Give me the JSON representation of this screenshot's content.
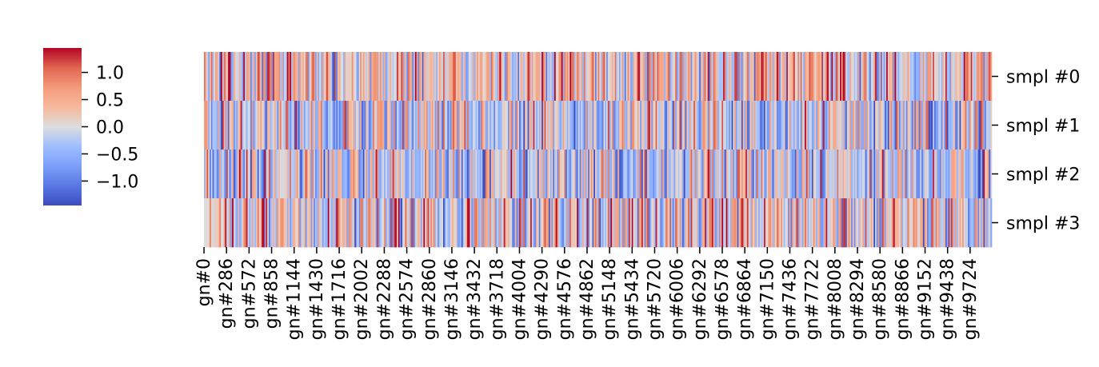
{
  "chart_data": {
    "type": "heatmap",
    "title": "",
    "xlabel": "",
    "ylabel": "",
    "rows": [
      "smpl #0",
      "smpl #1",
      "smpl #2",
      "smpl #3"
    ],
    "x_tick_labels": [
      "gn#0",
      "gn#286",
      "gn#572",
      "gn#858",
      "gn#1144",
      "gn#1430",
      "gn#1716",
      "gn#2002",
      "gn#2288",
      "gn#2574",
      "gn#2860",
      "gn#3146",
      "gn#3432",
      "gn#3718",
      "gn#4004",
      "gn#4290",
      "gn#4576",
      "gn#4862",
      "gn#5148",
      "gn#5434",
      "gn#5720",
      "gn#6006",
      "gn#6292",
      "gn#6578",
      "gn#6864",
      "gn#7150",
      "gn#7436",
      "gn#7722",
      "gn#8008",
      "gn#8294",
      "gn#8580",
      "gn#8866",
      "gn#9152",
      "gn#9438",
      "gn#9724"
    ],
    "x_count": 10000,
    "x_tick_step": 286,
    "colormap": "coolwarm",
    "colorbar": {
      "vmin": -1.45,
      "vmax": 1.45,
      "ticks": [
        1.0,
        0.5,
        0.0,
        -0.5,
        -1.0
      ],
      "tick_labels": [
        "1.0",
        "0.5",
        "0.0",
        "−0.5",
        "−1.0"
      ],
      "position": "left"
    },
    "value_note": "random values per gene per sample, range approx -1.45 to 1.45",
    "row_mean_bias": [
      0.25,
      -0.05,
      -0.15,
      0.1
    ],
    "columns_rendered": 560
  }
}
